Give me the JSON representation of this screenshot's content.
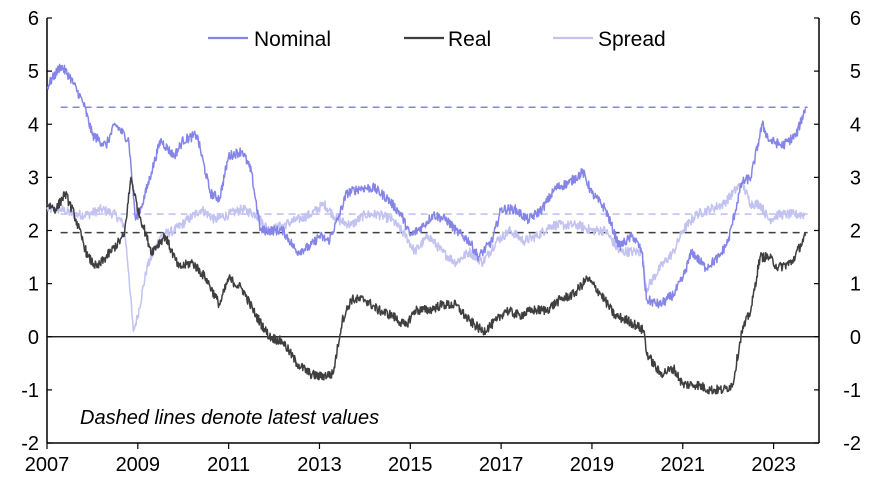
{
  "chart_data": {
    "type": "line",
    "title": "",
    "xlabel": "",
    "ylabel": "",
    "xlim": [
      2007,
      2024.0
    ],
    "ylim": [
      -2,
      6
    ],
    "x_ticks": [
      "2007",
      "2009",
      "2011",
      "2013",
      "2015",
      "2017",
      "2019",
      "2021",
      "2023"
    ],
    "y_ticks_left": [
      "6",
      "5",
      "4",
      "3",
      "2",
      "1",
      "0",
      "-1",
      "-2"
    ],
    "y_ticks_right": [
      "6",
      "5",
      "4",
      "3",
      "2",
      "1",
      "0",
      "-1",
      "-2"
    ],
    "annotation": "Dashed lines denote latest values",
    "legend": [
      "Nominal",
      "Real",
      "Spread"
    ],
    "colors": {
      "Nominal": "#8585e8",
      "Real": "#3f3f3f",
      "Spread": "#c3c3f2"
    },
    "series": [
      {
        "name": "Nominal",
        "latest": 4.32,
        "points": [
          [
            2007.0,
            4.7
          ],
          [
            2007.3,
            5.1
          ],
          [
            2007.5,
            4.9
          ],
          [
            2007.8,
            4.4
          ],
          [
            2008.0,
            3.8
          ],
          [
            2008.3,
            3.6
          ],
          [
            2008.5,
            4.0
          ],
          [
            2008.8,
            3.7
          ],
          [
            2008.95,
            2.2
          ],
          [
            2009.1,
            2.5
          ],
          [
            2009.3,
            3.1
          ],
          [
            2009.5,
            3.7
          ],
          [
            2009.8,
            3.4
          ],
          [
            2010.0,
            3.7
          ],
          [
            2010.3,
            3.8
          ],
          [
            2010.6,
            2.7
          ],
          [
            2010.8,
            2.6
          ],
          [
            2011.0,
            3.4
          ],
          [
            2011.3,
            3.5
          ],
          [
            2011.5,
            3.1
          ],
          [
            2011.7,
            2.0
          ],
          [
            2011.9,
            2.0
          ],
          [
            2012.2,
            2.0
          ],
          [
            2012.5,
            1.6
          ],
          [
            2012.8,
            1.7
          ],
          [
            2013.0,
            1.9
          ],
          [
            2013.2,
            1.8
          ],
          [
            2013.4,
            2.2
          ],
          [
            2013.6,
            2.7
          ],
          [
            2013.9,
            2.8
          ],
          [
            2014.2,
            2.8
          ],
          [
            2014.5,
            2.6
          ],
          [
            2014.8,
            2.3
          ],
          [
            2015.0,
            1.9
          ],
          [
            2015.3,
            2.1
          ],
          [
            2015.5,
            2.3
          ],
          [
            2015.8,
            2.2
          ],
          [
            2016.0,
            2.0
          ],
          [
            2016.3,
            1.8
          ],
          [
            2016.5,
            1.5
          ],
          [
            2016.8,
            1.8
          ],
          [
            2017.0,
            2.4
          ],
          [
            2017.3,
            2.4
          ],
          [
            2017.6,
            2.2
          ],
          [
            2017.9,
            2.4
          ],
          [
            2018.2,
            2.8
          ],
          [
            2018.5,
            2.9
          ],
          [
            2018.8,
            3.1
          ],
          [
            2019.0,
            2.7
          ],
          [
            2019.3,
            2.4
          ],
          [
            2019.6,
            1.7
          ],
          [
            2019.9,
            1.9
          ],
          [
            2020.1,
            1.6
          ],
          [
            2020.2,
            0.7
          ],
          [
            2020.5,
            0.6
          ],
          [
            2020.8,
            0.8
          ],
          [
            2021.0,
            1.1
          ],
          [
            2021.2,
            1.6
          ],
          [
            2021.5,
            1.3
          ],
          [
            2021.8,
            1.5
          ],
          [
            2022.0,
            1.8
          ],
          [
            2022.3,
            2.9
          ],
          [
            2022.5,
            3.0
          ],
          [
            2022.75,
            4.0
          ],
          [
            2022.9,
            3.7
          ],
          [
            2023.2,
            3.6
          ],
          [
            2023.5,
            3.8
          ],
          [
            2023.7,
            4.3
          ]
        ]
      },
      {
        "name": "Real",
        "latest": 1.96,
        "points": [
          [
            2007.0,
            2.5
          ],
          [
            2007.2,
            2.4
          ],
          [
            2007.4,
            2.7
          ],
          [
            2007.6,
            2.3
          ],
          [
            2007.9,
            1.5
          ],
          [
            2008.1,
            1.3
          ],
          [
            2008.4,
            1.6
          ],
          [
            2008.7,
            1.9
          ],
          [
            2008.85,
            3.0
          ],
          [
            2009.0,
            2.4
          ],
          [
            2009.3,
            1.6
          ],
          [
            2009.6,
            1.9
          ],
          [
            2009.9,
            1.3
          ],
          [
            2010.2,
            1.4
          ],
          [
            2010.5,
            1.1
          ],
          [
            2010.8,
            0.6
          ],
          [
            2011.0,
            1.1
          ],
          [
            2011.3,
            0.9
          ],
          [
            2011.6,
            0.4
          ],
          [
            2011.9,
            0.0
          ],
          [
            2012.2,
            -0.1
          ],
          [
            2012.5,
            -0.5
          ],
          [
            2012.8,
            -0.7
          ],
          [
            2013.0,
            -0.75
          ],
          [
            2013.3,
            -0.7
          ],
          [
            2013.5,
            0.3
          ],
          [
            2013.7,
            0.7
          ],
          [
            2014.0,
            0.7
          ],
          [
            2014.3,
            0.5
          ],
          [
            2014.6,
            0.4
          ],
          [
            2014.9,
            0.2
          ],
          [
            2015.1,
            0.5
          ],
          [
            2015.4,
            0.5
          ],
          [
            2015.7,
            0.6
          ],
          [
            2016.0,
            0.6
          ],
          [
            2016.3,
            0.3
          ],
          [
            2016.6,
            0.1
          ],
          [
            2016.9,
            0.3
          ],
          [
            2017.1,
            0.5
          ],
          [
            2017.4,
            0.4
          ],
          [
            2017.7,
            0.5
          ],
          [
            2018.0,
            0.5
          ],
          [
            2018.3,
            0.7
          ],
          [
            2018.6,
            0.8
          ],
          [
            2018.9,
            1.1
          ],
          [
            2019.2,
            0.8
          ],
          [
            2019.5,
            0.4
          ],
          [
            2019.8,
            0.3
          ],
          [
            2020.0,
            0.2
          ],
          [
            2020.15,
            0.1
          ],
          [
            2020.2,
            -0.3
          ],
          [
            2020.5,
            -0.7
          ],
          [
            2020.8,
            -0.6
          ],
          [
            2021.0,
            -0.9
          ],
          [
            2021.3,
            -0.9
          ],
          [
            2021.6,
            -1.0
          ],
          [
            2021.9,
            -1.0
          ],
          [
            2022.1,
            -0.9
          ],
          [
            2022.3,
            0.1
          ],
          [
            2022.5,
            0.5
          ],
          [
            2022.7,
            1.5
          ],
          [
            2022.9,
            1.5
          ],
          [
            2023.1,
            1.3
          ],
          [
            2023.4,
            1.4
          ],
          [
            2023.7,
            1.9
          ]
        ]
      },
      {
        "name": "Spread",
        "latest": 2.31,
        "points": [
          [
            2007.0,
            2.4
          ],
          [
            2007.3,
            2.4
          ],
          [
            2007.6,
            2.3
          ],
          [
            2007.9,
            2.3
          ],
          [
            2008.2,
            2.4
          ],
          [
            2008.5,
            2.3
          ],
          [
            2008.7,
            2.1
          ],
          [
            2008.8,
            1.2
          ],
          [
            2008.9,
            0.1
          ],
          [
            2009.0,
            0.4
          ],
          [
            2009.2,
            1.3
          ],
          [
            2009.5,
            1.9
          ],
          [
            2009.8,
            2.0
          ],
          [
            2010.1,
            2.2
          ],
          [
            2010.4,
            2.4
          ],
          [
            2010.7,
            2.2
          ],
          [
            2011.0,
            2.3
          ],
          [
            2011.3,
            2.4
          ],
          [
            2011.6,
            2.3
          ],
          [
            2011.9,
            2.0
          ],
          [
            2012.2,
            2.1
          ],
          [
            2012.5,
            2.2
          ],
          [
            2012.8,
            2.3
          ],
          [
            2013.1,
            2.5
          ],
          [
            2013.4,
            2.2
          ],
          [
            2013.7,
            2.1
          ],
          [
            2014.0,
            2.3
          ],
          [
            2014.3,
            2.3
          ],
          [
            2014.6,
            2.2
          ],
          [
            2014.9,
            1.9
          ],
          [
            2015.1,
            1.6
          ],
          [
            2015.4,
            1.9
          ],
          [
            2015.7,
            1.6
          ],
          [
            2016.0,
            1.4
          ],
          [
            2016.3,
            1.6
          ],
          [
            2016.6,
            1.4
          ],
          [
            2016.9,
            1.8
          ],
          [
            2017.2,
            2.0
          ],
          [
            2017.5,
            1.8
          ],
          [
            2017.8,
            1.9
          ],
          [
            2018.1,
            2.1
          ],
          [
            2018.4,
            2.1
          ],
          [
            2018.7,
            2.1
          ],
          [
            2019.0,
            2.0
          ],
          [
            2019.3,
            2.0
          ],
          [
            2019.6,
            1.6
          ],
          [
            2019.9,
            1.6
          ],
          [
            2020.1,
            1.6
          ],
          [
            2020.2,
            0.9
          ],
          [
            2020.5,
            1.3
          ],
          [
            2020.8,
            1.6
          ],
          [
            2021.0,
            2.0
          ],
          [
            2021.3,
            2.3
          ],
          [
            2021.6,
            2.4
          ],
          [
            2021.9,
            2.5
          ],
          [
            2022.1,
            2.7
          ],
          [
            2022.3,
            2.9
          ],
          [
            2022.5,
            2.5
          ],
          [
            2022.7,
            2.5
          ],
          [
            2022.9,
            2.2
          ],
          [
            2023.1,
            2.3
          ],
          [
            2023.4,
            2.3
          ],
          [
            2023.7,
            2.3
          ]
        ]
      }
    ]
  }
}
